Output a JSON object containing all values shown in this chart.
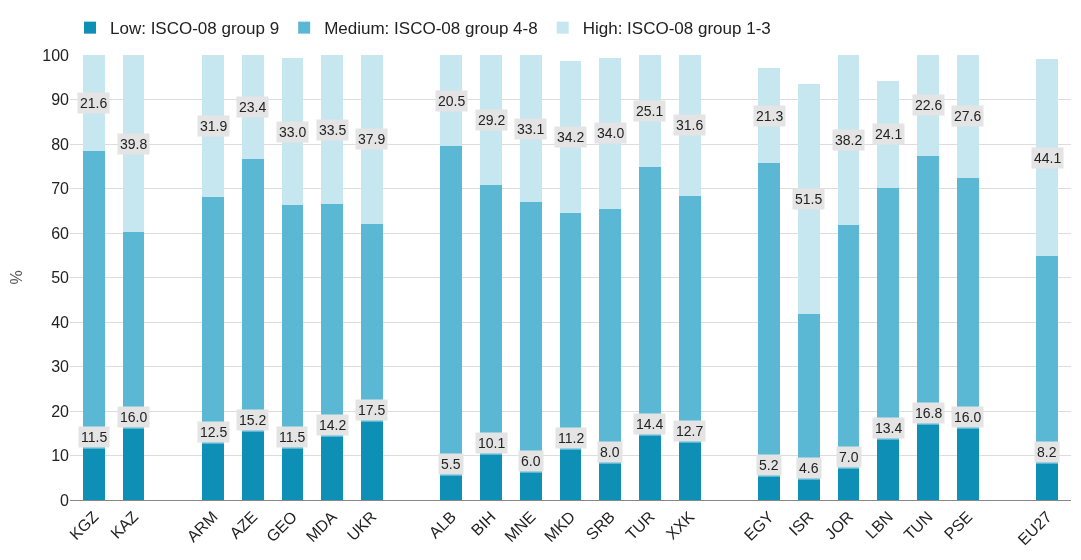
{
  "chart_data": {
    "type": "bar",
    "stacked": true,
    "ylabel": "%",
    "ylim": [
      0,
      100
    ],
    "yticks": [
      0,
      10,
      20,
      30,
      40,
      50,
      60,
      70,
      80,
      90,
      100
    ],
    "grid": "y",
    "legend": "top",
    "categories": [
      "KGZ",
      "KAZ",
      null,
      "ARM",
      "AZE",
      "GEO",
      "MDA",
      "UKR",
      null,
      "ALB",
      "BIH",
      "MNE",
      "MKD",
      "SRB",
      "TUR",
      "XXK",
      null,
      "EGY",
      "ISR",
      "JOR",
      "LBN",
      "TUN",
      "PSE",
      null,
      "EU27"
    ],
    "series": [
      {
        "name": "Low: ISCO-08 group 9",
        "color": "#0e8fb5",
        "values": [
          11.5,
          16.0,
          null,
          12.5,
          15.2,
          11.5,
          14.2,
          17.5,
          null,
          5.5,
          10.1,
          6.0,
          11.2,
          8.0,
          14.4,
          12.7,
          null,
          5.2,
          4.6,
          7.0,
          13.4,
          16.8,
          16.0,
          null,
          8.2
        ],
        "value_labels": [
          "11.5",
          "16.0",
          null,
          "12.5",
          "15.2",
          "11.5",
          "14.2",
          "17.5",
          null,
          "5.5",
          "10.1",
          "6.0",
          "11.2",
          "8.0",
          "14.4",
          "12.7",
          null,
          "5.2",
          "4.6",
          "7.0",
          "13.4",
          "16.8",
          "16.0",
          null,
          "8.2"
        ]
      },
      {
        "name": "Medium: ISCO-08 group 4-8",
        "color": "#5bb8d4",
        "values": [
          66.9,
          44.2,
          null,
          55.6,
          61.4,
          54.8,
          52.3,
          44.6,
          null,
          74.0,
          60.7,
          60.9,
          53.3,
          57.4,
          60.5,
          55.7,
          null,
          70.5,
          37.3,
          54.8,
          56.7,
          60.6,
          56.4,
          null,
          46.7
        ]
      },
      {
        "name": "High: ISCO-08 group 1-3",
        "color": "#c6e6f0",
        "values": [
          21.6,
          39.8,
          null,
          31.9,
          23.4,
          33.0,
          33.5,
          37.9,
          null,
          20.5,
          29.2,
          33.1,
          34.2,
          34.0,
          25.1,
          31.6,
          null,
          21.3,
          51.5,
          38.2,
          24.1,
          22.6,
          27.6,
          null,
          44.1
        ],
        "value_labels": [
          "21.6",
          "39.8",
          null,
          "31.9",
          "23.4",
          "33.0",
          "33.5",
          "37.9",
          null,
          "20.5",
          "29.2",
          "33.1",
          "34.2",
          "34.0",
          "25.1",
          "31.6",
          null,
          "21.3",
          "51.5",
          "38.2",
          "24.1",
          "22.6",
          "27.6",
          null,
          "44.1"
        ]
      }
    ]
  }
}
